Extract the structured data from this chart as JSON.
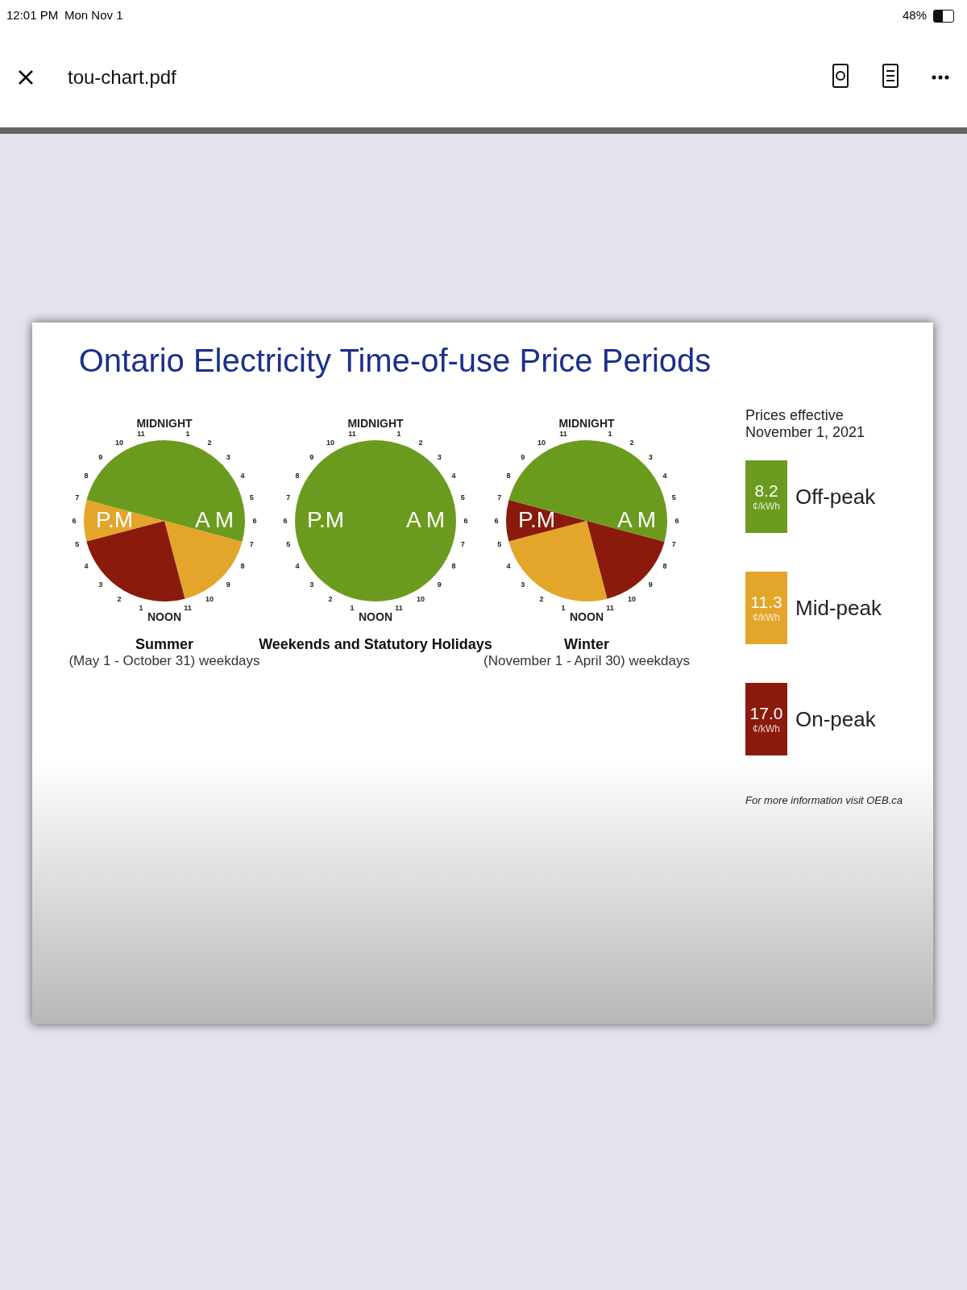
{
  "chart_data": [
    {
      "type": "pie",
      "title": "Summer",
      "subtitle": "(May 1 - October 31) weekdays",
      "categories": [
        null,
        null,
        null,
        null,
        null
      ],
      "values": [
        29.2,
        16.7,
        25,
        8.3,
        20.8
      ],
      "colors": [
        "#6b9b1e",
        "#e3a52a",
        "#8a1a0c",
        "#e3a52a",
        "#6b9b1e"
      ],
      "annotations": [
        "MIDNIGHT",
        "1",
        "2",
        "3",
        "4",
        "5",
        "6",
        "7",
        "8",
        "9",
        "10",
        "11",
        "NOON",
        "1",
        "2",
        "3",
        "4",
        "5",
        "6",
        "7",
        "8",
        "9",
        "10",
        "11",
        "A M",
        "P.M"
      ]
    },
    {
      "type": "pie",
      "title": "Weekends and Statutory Holidays",
      "categories": [
        null
      ],
      "values": [
        100
      ],
      "colors": [
        "#6b9b1e"
      ],
      "annotations": [
        "MIDNIGHT",
        "1",
        "2",
        "3",
        "4",
        "5",
        "6",
        "7",
        "8",
        "9",
        "10",
        "11",
        "NOON",
        "1",
        "2",
        "3",
        "4",
        "5",
        "6",
        "7",
        "8",
        "9",
        "10",
        "11",
        "A M",
        "P.M"
      ]
    },
    {
      "type": "pie",
      "title": "Winter",
      "subtitle": "(November 1 - April 30) weekdays",
      "categories": [
        null,
        null,
        null,
        null,
        null
      ],
      "values": [
        29.2,
        16.7,
        25,
        8.3,
        20.8
      ],
      "colors": [
        "#6b9b1e",
        "#8a1a0c",
        "#e3a52a",
        "#8a1a0c",
        "#6b9b1e"
      ],
      "annotations": [
        "MIDNIGHT",
        "1",
        "2",
        "3",
        "4",
        "5",
        "6",
        "7",
        "8",
        "9",
        "10",
        "11",
        "NOON",
        "1",
        "2",
        "3",
        "4",
        "5",
        "6",
        "7",
        "8",
        "9",
        "10",
        "11",
        "A M",
        "P.M"
      ]
    },
    {
      "type": "other",
      "title": "Ontario Electricity Time-of-use Price Periods",
      "legend_title": "Prices effective November 1, 2021",
      "categories": [
        "Off-peak",
        "Mid-peak",
        "On-peak"
      ],
      "value_labels": [
        "8.2",
        "11.3",
        "17.0"
      ],
      "colors": [
        "#6b9b1e",
        "#e3a52a",
        "#8a1a0c"
      ],
      "annotations": [
        "¢/kWh",
        "For more information visit OEB.ca",
        "12:01 PM",
        "Mon Nov 1",
        "48%",
        "tou-chart.pdf"
      ]
    }
  ]
}
